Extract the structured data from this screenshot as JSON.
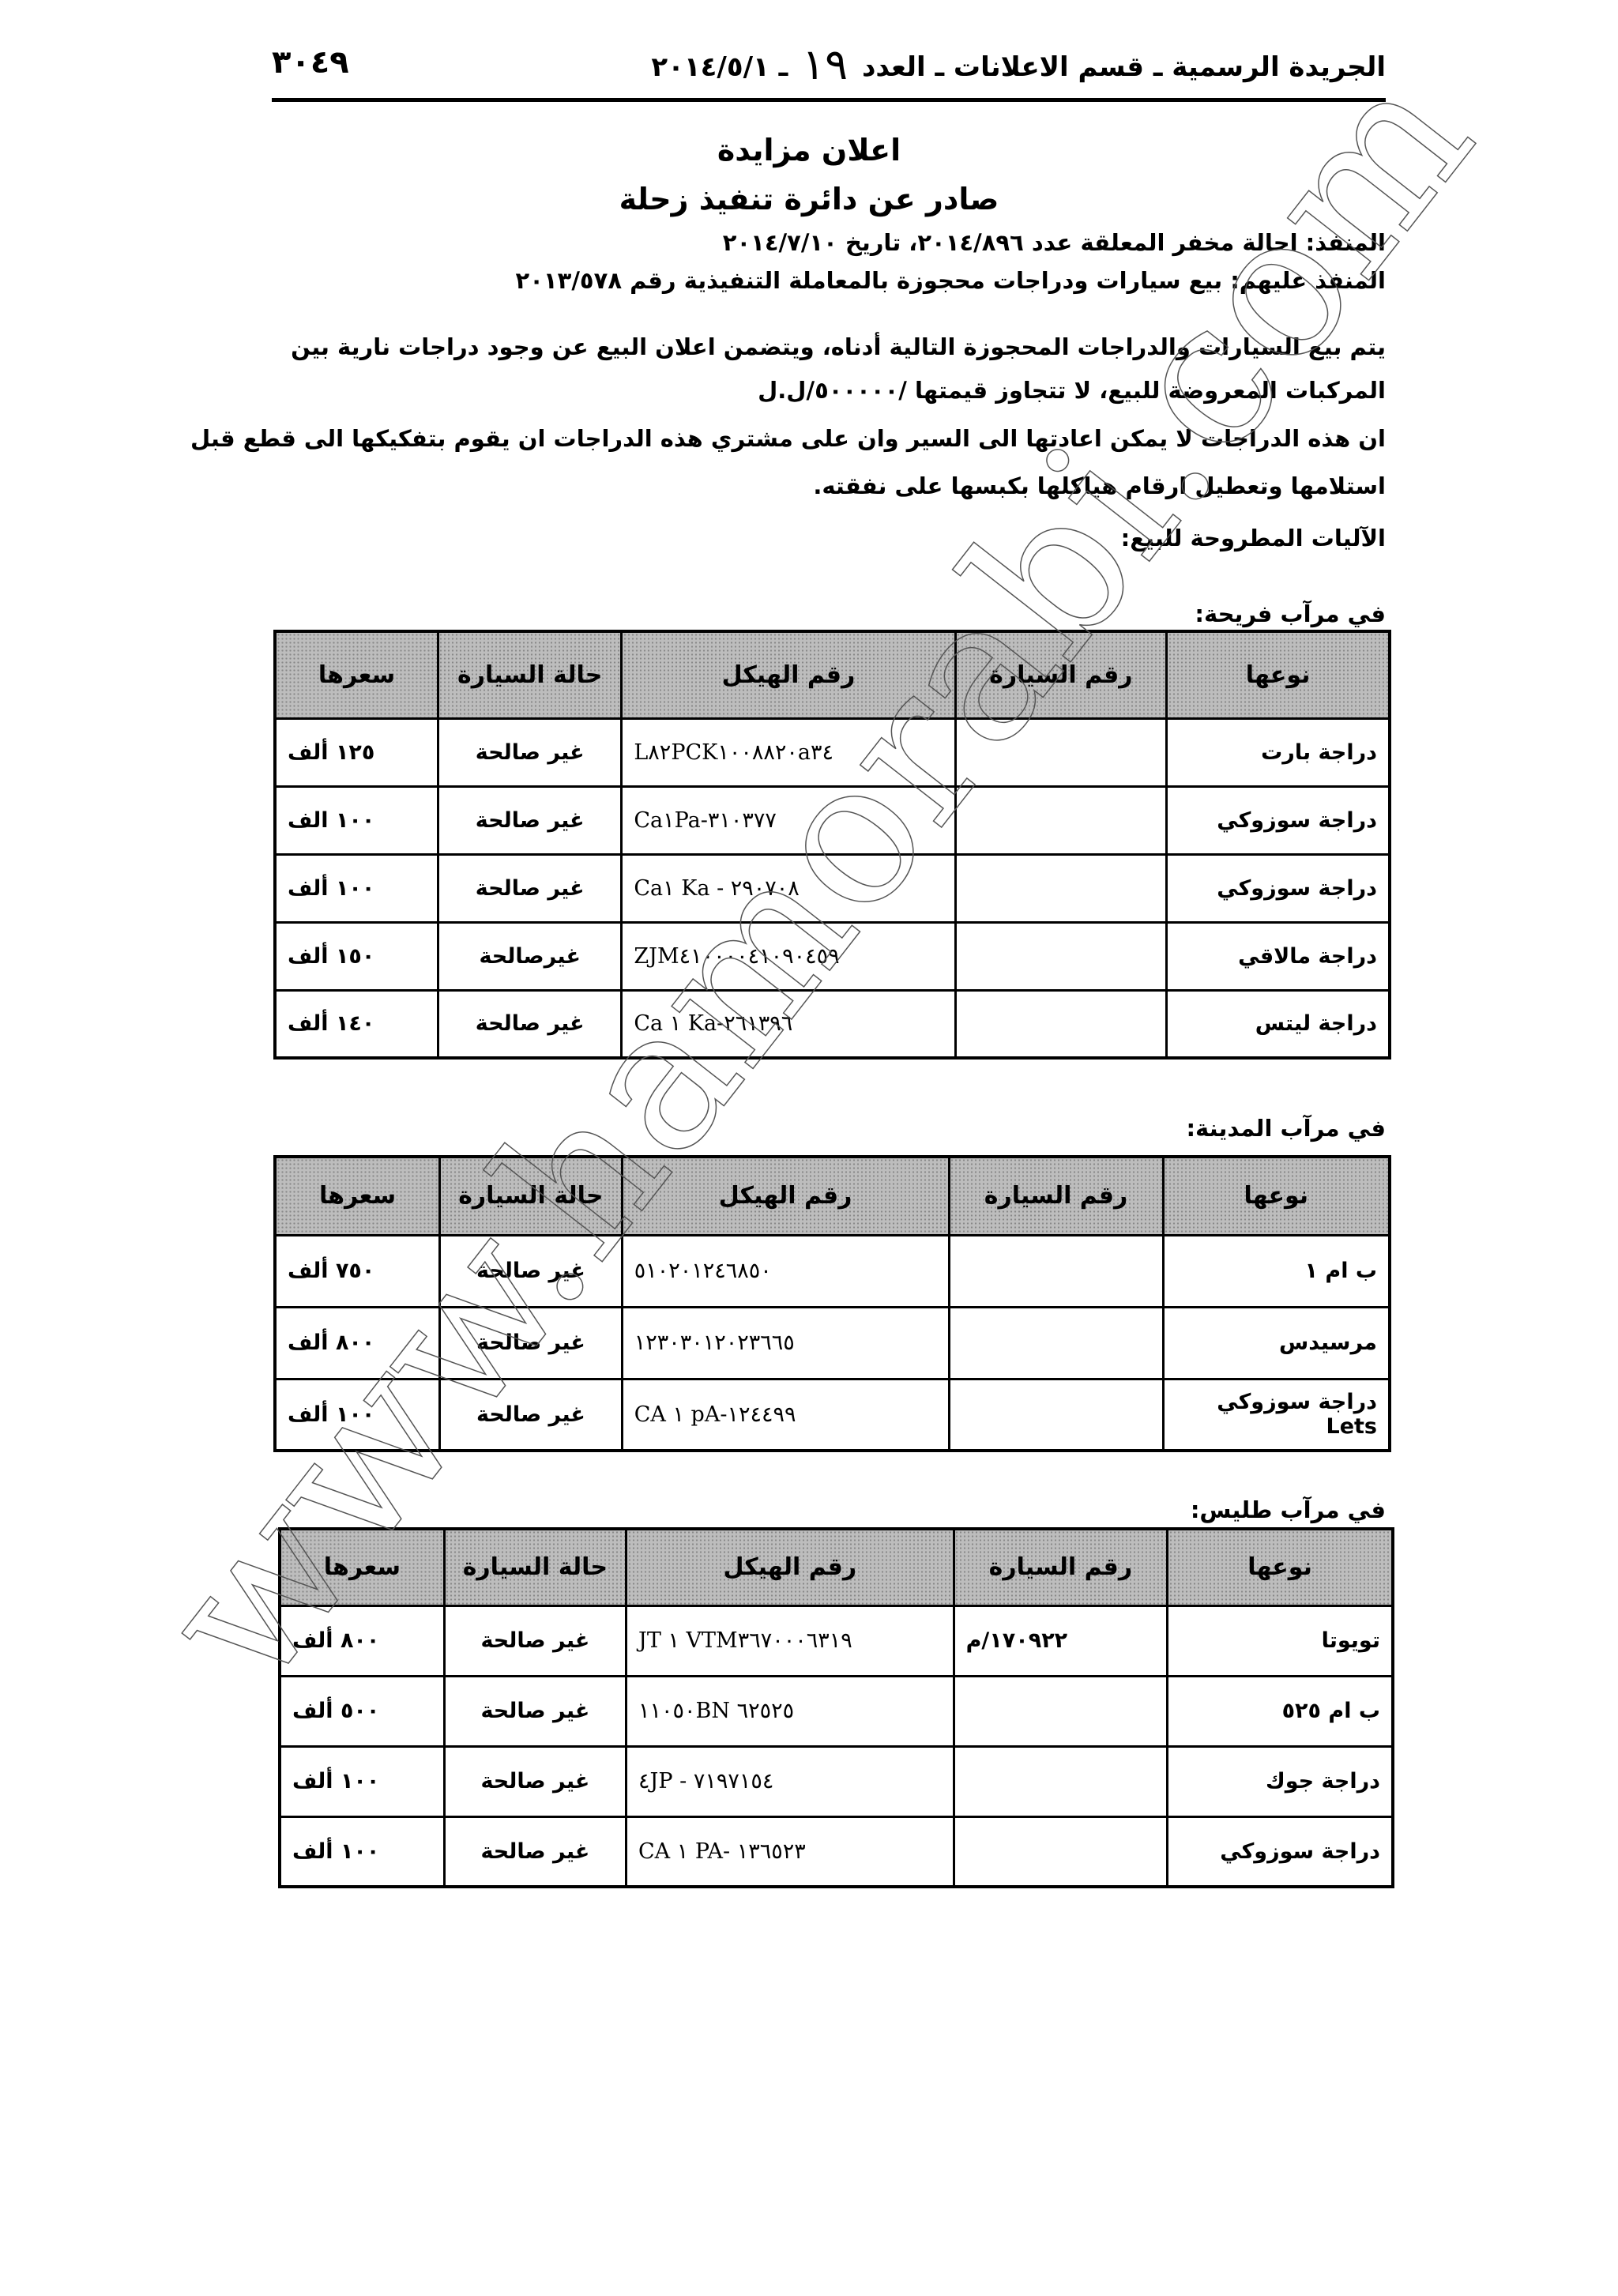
{
  "header": {
    "gazette": "الجريدة الرسمية ـ قسم الاعلانات ـ العدد",
    "issue": "١٩",
    "date": "ـ ٢٠١٤/٥/١",
    "page_number": "٣٠٤٩"
  },
  "title": "اعلان مزايدة",
  "subtitle": "صادر عن دائرة تنفيذ زحلة",
  "lines": [
    "المنفذ: احالة مخفر المعلقة عدد ٢٠١٤/٨٩٦، تاريخ ٢٠١٤/٧/١٠",
    "المنفذ عليهم: بيع سيارات ودراجات محجوزة بالمعاملة التنفيذية رقم ٢٠١٣/٥٧٨",
    "يتم بيع السيارات والدراجات المحجوزة التالية أدناه، ويتضمن اعلان البيع عن وجود دراجات نارية بين",
    "المركبات المعروضة للبيع، لا تتجاوز قيمتها /٥٠٠٠٠٠/ل.ل",
    "ان هذه الدراجات لا يمكن اعادتها الى السير وان على مشتري هذه الدراجات ان يقوم بتفكيكها الى قطع قبل",
    "استلامها وتعطيل ارقام هياكلها بكبسها على نفقته.",
    "الآليات المطروحة للبيع:"
  ],
  "columns": [
    "نوعها",
    "رقم السيارة",
    "رقم الهيكل",
    "حالة السيارة",
    "سعرها"
  ],
  "sections": [
    {
      "heading": "في مرآب فريحة:",
      "rows": [
        [
          "دراجة بارت",
          "",
          "L٨٢PCK١٠٠٨٨٢٠a٣٤",
          "غير صالحة",
          "١٢٥ ألف"
        ],
        [
          "دراجة سوزوكي",
          "",
          "Ca١Pa-٣١٠٣٧٧",
          "غير صالحة",
          "١٠٠ الف"
        ],
        [
          "دراجة سوزوكي",
          "",
          "Ca١ Ka - ٢٩٠٧٠٨",
          "غير صالحة",
          "١٠٠ ألف"
        ],
        [
          "دراجة مالاقي",
          "",
          "ZJM٤١٠٠٠٠٤١٠٩٠٤٥٩",
          "غيرصالحة",
          "١٥٠ ألف"
        ],
        [
          "دراجة ليتس",
          "",
          "Ca ١ Ka-٢٦١٣٩٦",
          "غير صالحة",
          "١٤٠ ألف"
        ]
      ]
    },
    {
      "heading": "في مرآب المدينة:",
      "rows": [
        [
          "ب ام ١",
          "",
          "٥١٠٢٠١٢٤٦٨٥٠",
          "غير صالحة",
          "٧٥٠ ألف"
        ],
        [
          "مرسيدس",
          "",
          "١٢٣٠٣٠١٢٠٢٣٦٦٥",
          "غير صالحة",
          "٨٠٠ ألف"
        ],
        [
          "دراجة سوزوكي Lets",
          "",
          "CA ١ pA-١٢٤٤٩٩",
          "غير صالحة",
          "١٠٠ ألف"
        ]
      ]
    },
    {
      "heading": "في مرآب طليس:",
      "rows": [
        [
          "تويوتا",
          "١٧٠٩٢٢/م",
          "JT ١ VTM٣٦٧٠٠٠٦٣١٩",
          "غير صالحة",
          "٨٠٠ ألف"
        ],
        [
          "ب ام ٥٢٥",
          "",
          "١١٠٥٠BN ٦٢٥٢٥",
          "غير صالحة",
          "٥٠٠ ألف"
        ],
        [
          "دراجة جوك",
          "",
          "٤JP - ٧١٩٧١٥٤",
          "غير صالحة",
          "١٠٠ ألف"
        ],
        [
          "دراجة سوزوكي",
          "",
          "CA ١ PA- ١٣٦٥٢٣",
          "غير صالحة",
          "١٠٠ ألف"
        ]
      ]
    }
  ],
  "watermark": "www.hamorabi.com"
}
